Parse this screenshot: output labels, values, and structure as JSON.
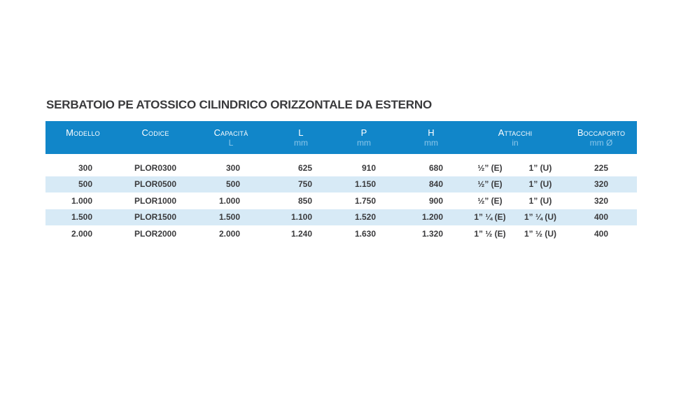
{
  "page": {
    "background": "#ffffff"
  },
  "title": "SERBATOIO PE ATOSSICO CILINDRICO ORIZZONTALE DA ESTERNO",
  "table": {
    "colors": {
      "header_bg": "#1186c9",
      "header_text": "#ffffff",
      "header_subtext": "#8cc7ea",
      "row_bg": "#ffffff",
      "row_alt_bg": "#d7eaf6",
      "text_dark": "#3a3a3c"
    },
    "columns": [
      {
        "label": "Modello",
        "unit": ""
      },
      {
        "label": "Codice",
        "unit": ""
      },
      {
        "label": "Capacità",
        "unit": "L"
      },
      {
        "label": "L",
        "unit": "mm"
      },
      {
        "label": "P",
        "unit": "mm"
      },
      {
        "label": "H",
        "unit": "mm"
      },
      {
        "label": "Attacchi",
        "unit": "in"
      },
      {
        "label": "Boccaporto",
        "unit": "mm Ø"
      }
    ],
    "rows": [
      {
        "modello": "300",
        "codice": "PLOR0300",
        "capacita": "300",
        "l": "625",
        "p": "910",
        "h": "680",
        "attacchi_e": "½” (E)",
        "attacchi_u": "1” (U)",
        "boccaporto": "225"
      },
      {
        "modello": "500",
        "codice": "PLOR0500",
        "capacita": "500",
        "l": "750",
        "p": "1.150",
        "h": "840",
        "attacchi_e": "½” (E)",
        "attacchi_u": "1” (U)",
        "boccaporto": "320"
      },
      {
        "modello": "1.000",
        "codice": "PLOR1000",
        "capacita": "1.000",
        "l": "850",
        "p": "1.750",
        "h": "900",
        "attacchi_e": "½” (E)",
        "attacchi_u": "1” (U)",
        "boccaporto": "320"
      },
      {
        "modello": "1.500",
        "codice": "PLOR1500",
        "capacita": "1.500",
        "l": "1.100",
        "p": "1.520",
        "h": "1.200",
        "attacchi_e": "1” ¼ (E)",
        "attacchi_u": "1” ¼ (U)",
        "boccaporto": "400"
      },
      {
        "modello": "2.000",
        "codice": "PLOR2000",
        "capacita": "2.000",
        "l": "1.240",
        "p": "1.630",
        "h": "1.320",
        "attacchi_e": "1” ½ (E)",
        "attacchi_u": "1” ½ (U)",
        "boccaporto": "400"
      }
    ]
  }
}
